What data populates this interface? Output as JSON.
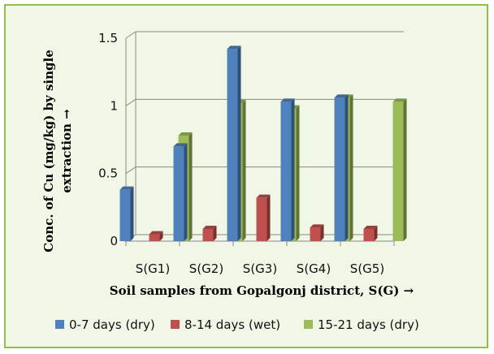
{
  "chart_data": {
    "type": "bar",
    "style": "3d-clustered-column",
    "categories": [
      "S(G1)",
      "S(G2)",
      "S(G3)",
      "S(G4)",
      "S(G5)"
    ],
    "series": [
      {
        "name": "0-7 days (dry)",
        "color": "#4f81bd",
        "values": [
          0.38,
          0.7,
          1.42,
          1.03,
          1.06
        ]
      },
      {
        "name": "8-14 days (wet)",
        "color": "#c0504d",
        "values": [
          0.05,
          0.09,
          0.32,
          0.1,
          0.09
        ]
      },
      {
        "name": "15-21 days (dry)",
        "color": "#9bbb59",
        "values": [
          0.78,
          1.02,
          0.98,
          1.06,
          1.03
        ]
      }
    ],
    "xlabel": "Soil samples from Gopalgonj district, S(G) →",
    "ylabel_lines": [
      "Conc. of Cu (mg/kg) by single",
      "extraction →"
    ],
    "ylim": [
      0,
      1.5
    ],
    "yticks": [
      "0",
      "0.5",
      "1",
      "1.5"
    ],
    "grid": true,
    "legend_position": "bottom"
  }
}
